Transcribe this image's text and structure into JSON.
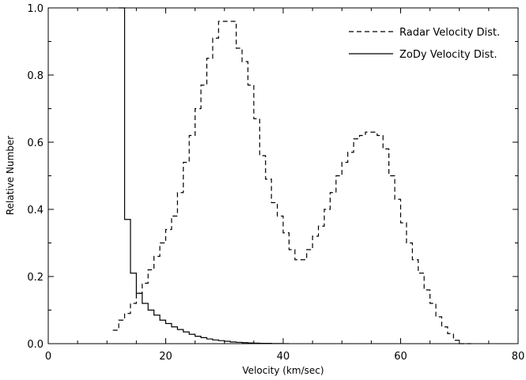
{
  "chart_data": {
    "type": "line",
    "xlabel": "Velocity (km/sec)",
    "ylabel": "Relative Number",
    "xlim": [
      0,
      80
    ],
    "ylim": [
      0,
      1.0
    ],
    "x_ticks": [
      0,
      20,
      40,
      60,
      80
    ],
    "y_ticks": [
      0.0,
      0.2,
      0.4,
      0.6,
      0.8,
      1.0
    ],
    "x_tick_labels": [
      "0",
      "20",
      "40",
      "60",
      "80"
    ],
    "y_tick_labels": [
      "0.0",
      "0.2",
      "0.4",
      "0.6",
      "0.8",
      "1.0"
    ],
    "grid": false,
    "legend_position": "top-right",
    "series": [
      {
        "name": "Radar Velocity Dist.",
        "style": "dashed-step",
        "color": "#000000",
        "x": [
          11,
          12,
          13,
          14,
          15,
          16,
          17,
          18,
          19,
          20,
          21,
          22,
          23,
          24,
          25,
          26,
          27,
          28,
          29,
          30,
          31,
          32,
          33,
          34,
          35,
          36,
          37,
          38,
          39,
          40,
          41,
          42,
          43,
          44,
          45,
          46,
          47,
          48,
          49,
          50,
          51,
          52,
          53,
          54,
          55,
          56,
          57,
          58,
          59,
          60,
          61,
          62,
          63,
          64,
          65,
          66,
          67,
          68,
          69,
          70,
          71
        ],
        "y": [
          0.04,
          0.07,
          0.09,
          0.12,
          0.15,
          0.18,
          0.22,
          0.26,
          0.3,
          0.34,
          0.38,
          0.45,
          0.54,
          0.62,
          0.7,
          0.77,
          0.85,
          0.91,
          0.96,
          0.96,
          0.96,
          0.88,
          0.84,
          0.77,
          0.67,
          0.56,
          0.49,
          0.42,
          0.38,
          0.33,
          0.28,
          0.25,
          0.25,
          0.28,
          0.32,
          0.35,
          0.4,
          0.45,
          0.5,
          0.54,
          0.57,
          0.61,
          0.62,
          0.63,
          0.63,
          0.62,
          0.58,
          0.5,
          0.43,
          0.36,
          0.3,
          0.25,
          0.21,
          0.16,
          0.12,
          0.08,
          0.05,
          0.03,
          0.01,
          0.0,
          0.0
        ]
      },
      {
        "name": "ZoDy Velocity Dist.",
        "style": "solid-step",
        "color": "#000000",
        "x": [
          12,
          13,
          14,
          15,
          16,
          17,
          18,
          19,
          20,
          21,
          22,
          23,
          24,
          25,
          26,
          27,
          28,
          29,
          30,
          31,
          32,
          33,
          34,
          35,
          36,
          37,
          38,
          39,
          40
        ],
        "y": [
          1.0,
          0.37,
          0.21,
          0.15,
          0.12,
          0.1,
          0.085,
          0.07,
          0.06,
          0.05,
          0.042,
          0.035,
          0.028,
          0.022,
          0.018,
          0.014,
          0.011,
          0.009,
          0.007,
          0.005,
          0.004,
          0.003,
          0.002,
          0.0015,
          0.001,
          0.0008,
          0.0005,
          0.0003,
          0.0002
        ]
      }
    ]
  }
}
